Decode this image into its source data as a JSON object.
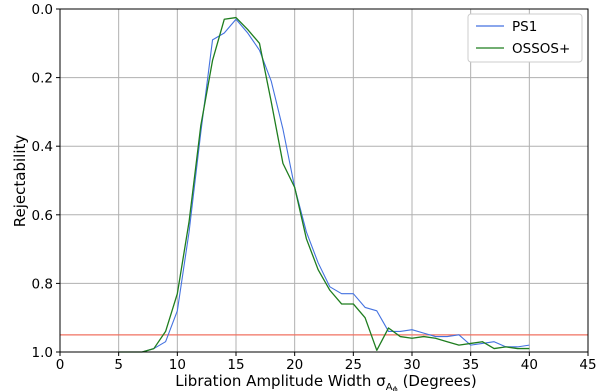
{
  "chart_data": {
    "type": "line",
    "xlabel": "Libration Amplitude Width σ",
    "xlabel_sub": "A",
    "xlabel_subsub": "ϕ",
    "xlabel_suffix": " (Degrees)",
    "ylabel": "Rejectability",
    "xlim": [
      0,
      45
    ],
    "ylim": [
      1.0,
      0.0
    ],
    "y_inverted": true,
    "xticks": [
      0,
      5,
      10,
      15,
      20,
      25,
      30,
      35,
      40,
      45
    ],
    "yticks": [
      0.0,
      0.2,
      0.4,
      0.6,
      0.8,
      1.0
    ],
    "xtick_labels": [
      "0",
      "5",
      "10",
      "15",
      "20",
      "25",
      "30",
      "35",
      "40",
      "45"
    ],
    "ytick_labels": [
      "0.0",
      "0.2",
      "0.4",
      "0.6",
      "0.8",
      "1.0"
    ],
    "grid": true,
    "legend_position": "top-right",
    "series": [
      {
        "name": "PS1",
        "color": "#4472e0",
        "x": [
          5,
          6,
          7,
          8,
          9,
          10,
          11,
          12,
          13,
          14,
          15,
          16,
          17,
          18,
          19,
          20,
          21,
          22,
          23,
          24,
          25,
          26,
          27,
          28,
          29,
          30,
          31,
          32,
          33,
          34,
          35,
          36,
          37,
          38,
          39,
          40
        ],
        "y": [
          1.0,
          1.0,
          1.0,
          0.99,
          0.97,
          0.88,
          0.65,
          0.36,
          0.09,
          0.07,
          0.03,
          0.07,
          0.12,
          0.21,
          0.35,
          0.52,
          0.65,
          0.74,
          0.81,
          0.83,
          0.83,
          0.87,
          0.88,
          0.94,
          0.94,
          0.935,
          0.945,
          0.955,
          0.955,
          0.95,
          0.98,
          0.975,
          0.97,
          0.985,
          0.985,
          0.98
        ]
      },
      {
        "name": "OSSOS+",
        "color": "#1e7d1e",
        "x": [
          5,
          6,
          7,
          8,
          9,
          10,
          11,
          12,
          13,
          14,
          15,
          16,
          17,
          18,
          19,
          20,
          21,
          22,
          23,
          24,
          25,
          26,
          27,
          28,
          29,
          30,
          31,
          32,
          33,
          34,
          35,
          36,
          37,
          38,
          39,
          40
        ],
        "y": [
          1.0,
          1.0,
          1.0,
          0.99,
          0.94,
          0.83,
          0.62,
          0.34,
          0.15,
          0.03,
          0.025,
          0.06,
          0.1,
          0.27,
          0.45,
          0.52,
          0.67,
          0.76,
          0.82,
          0.86,
          0.86,
          0.9,
          0.995,
          0.93,
          0.955,
          0.96,
          0.955,
          0.96,
          0.97,
          0.98,
          0.975,
          0.97,
          0.99,
          0.985,
          0.99,
          0.99
        ]
      }
    ],
    "reference_line": {
      "y": 0.95,
      "color": "#f07060"
    }
  }
}
